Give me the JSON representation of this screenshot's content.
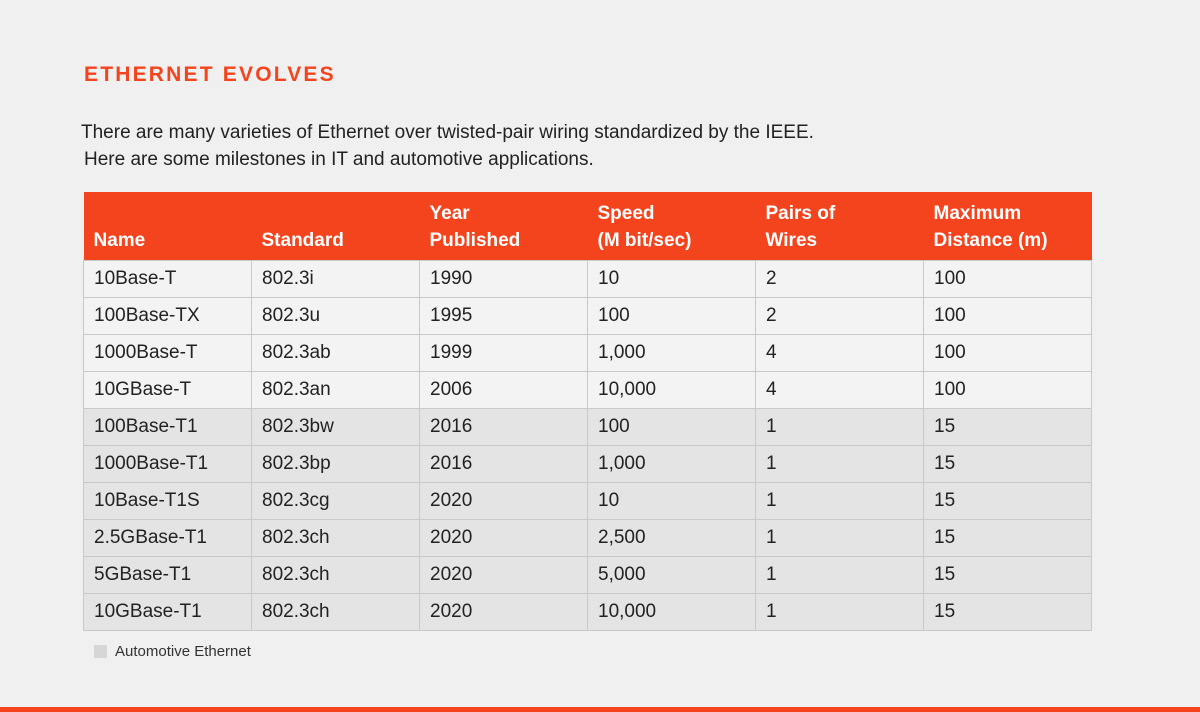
{
  "title": "ETHERNET EVOLVES",
  "intro": {
    "line1": "There are many varieties of Ethernet over twisted-pair wiring standardized by the IEEE.",
    "line2": "Here are some milestones in IT and automotive applications."
  },
  "colors": {
    "accent": "#f4441e",
    "automotive_row": "#e4e4e4",
    "it_row": "#f3f3f3",
    "background": "#f0f0f0"
  },
  "table": {
    "headers": [
      {
        "line1": "",
        "line2": "Name"
      },
      {
        "line1": "",
        "line2": "Standard"
      },
      {
        "line1": "Year",
        "line2": "Published"
      },
      {
        "line1": "Speed",
        "line2": "(M bit/sec)"
      },
      {
        "line1": "Pairs of",
        "line2": "Wires"
      },
      {
        "line1": "Maximum",
        "line2": "Distance (m)"
      }
    ],
    "rows": [
      {
        "name": "10Base-T",
        "standard": "802.3i",
        "year": "1990",
        "speed": "10",
        "pairs": "2",
        "distance": "100",
        "automotive": false
      },
      {
        "name": "100Base-TX",
        "standard": "802.3u",
        "year": "1995",
        "speed": "100",
        "pairs": "2",
        "distance": "100",
        "automotive": false
      },
      {
        "name": "1000Base-T",
        "standard": "802.3ab",
        "year": "1999",
        "speed": "1,000",
        "pairs": "4",
        "distance": "100",
        "automotive": false
      },
      {
        "name": "10GBase-T",
        "standard": "802.3an",
        "year": "2006",
        "speed": "10,000",
        "pairs": "4",
        "distance": "100",
        "automotive": false
      },
      {
        "name": "100Base-T1",
        "standard": "802.3bw",
        "year": "2016",
        "speed": "100",
        "pairs": "1",
        "distance": "15",
        "automotive": true
      },
      {
        "name": "1000Base-T1",
        "standard": "802.3bp",
        "year": "2016",
        "speed": "1,000",
        "pairs": "1",
        "distance": "15",
        "automotive": true
      },
      {
        "name": "10Base-T1S",
        "standard": "802.3cg",
        "year": "2020",
        "speed": "10",
        "pairs": "1",
        "distance": "15",
        "automotive": true
      },
      {
        "name": "2.5GBase-T1",
        "standard": "802.3ch",
        "year": "2020",
        "speed": "2,500",
        "pairs": "1",
        "distance": "15",
        "automotive": true
      },
      {
        "name": "5GBase-T1",
        "standard": "802.3ch",
        "year": "2020",
        "speed": "5,000",
        "pairs": "1",
        "distance": "15",
        "automotive": true
      },
      {
        "name": "10GBase-T1",
        "standard": "802.3ch",
        "year": "2020",
        "speed": "10,000",
        "pairs": "1",
        "distance": "15",
        "automotive": true
      }
    ]
  },
  "legend": {
    "label": "Automotive Ethernet"
  }
}
